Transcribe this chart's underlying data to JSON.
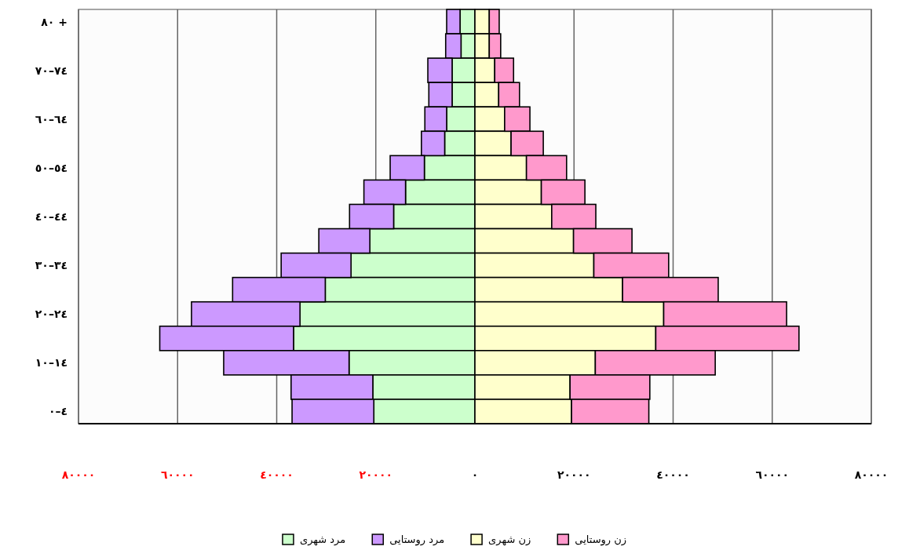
{
  "chart_data": {
    "type": "bar",
    "orientation": "horizontal",
    "stacked": true,
    "categories": [
      "٨٠ +",
      null,
      "٧٠–٧٤",
      null,
      "٦٠–٦٤",
      null,
      "٥٠–٥٤",
      null,
      "٤٠–٤٤",
      null,
      "٣٠–٣٤",
      null,
      "٢٠–٢٤",
      null,
      "١٠–١٤",
      null,
      "٠–٤"
    ],
    "series": [
      {
        "name": "مرد شهری",
        "color": "#ccffcc",
        "values": [
          -3000,
          -2800,
          -4600,
          -4600,
          -5700,
          -6100,
          -10200,
          -14000,
          -16400,
          -21200,
          -25000,
          -30200,
          -35300,
          -36600,
          -25400,
          -20600,
          -20400
        ]
      },
      {
        "name": "مرد روستایی",
        "color": "#cc99ff",
        "values": [
          -2700,
          -3100,
          -4900,
          -4700,
          -4400,
          -4700,
          -6900,
          -8400,
          -8900,
          -10300,
          -14100,
          -18700,
          -21900,
          -27000,
          -25300,
          -16500,
          -16500
        ]
      },
      {
        "name": "زن شهری",
        "color": "#ffffcc",
        "values": [
          2900,
          2900,
          4000,
          4800,
          6000,
          7300,
          10400,
          13400,
          15500,
          19900,
          24000,
          29800,
          38100,
          36500,
          24300,
          19200,
          19500
        ]
      },
      {
        "name": "زن روستایی",
        "color": "#ff99cc",
        "values": [
          2000,
          2300,
          3800,
          4200,
          5100,
          6500,
          8100,
          8800,
          8900,
          11800,
          15100,
          19300,
          24800,
          28900,
          24200,
          16100,
          15600
        ]
      }
    ],
    "xlim": [
      -80000,
      80000
    ],
    "xticks": [
      {
        "value": -80000,
        "label": "٨٠٠٠٠"
      },
      {
        "value": -60000,
        "label": "٦٠٠٠٠"
      },
      {
        "value": -40000,
        "label": "٤٠٠٠٠"
      },
      {
        "value": -20000,
        "label": "٢٠٠٠٠"
      },
      {
        "value": 0,
        "label": "٠"
      },
      {
        "value": 20000,
        "label": "٢٠٠٠٠"
      },
      {
        "value": 40000,
        "label": "٤٠٠٠٠"
      },
      {
        "value": 60000,
        "label": "٦٠٠٠٠"
      },
      {
        "value": 80000,
        "label": "٨٠٠٠٠"
      }
    ],
    "grid": "x",
    "legend": "bottom"
  }
}
